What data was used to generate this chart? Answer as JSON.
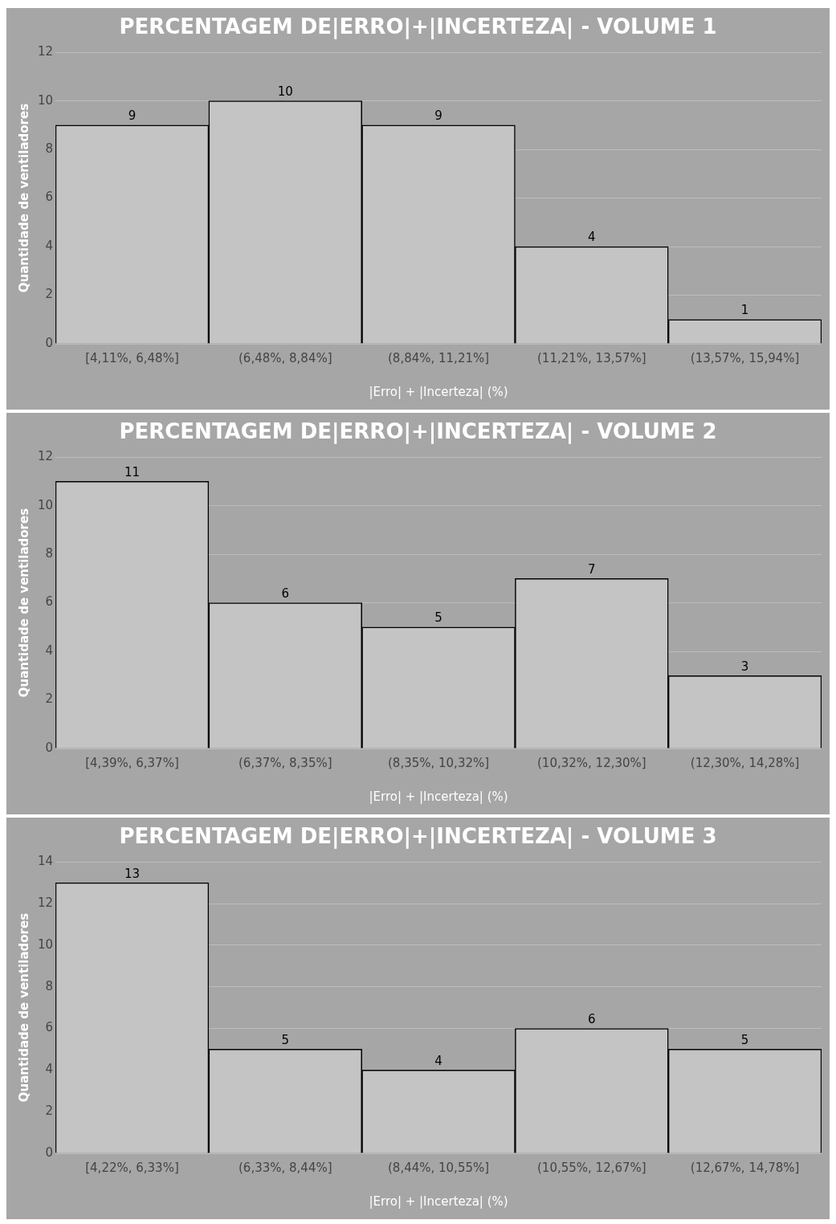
{
  "chart_data": [
    {
      "type": "bar",
      "title": "PERCENTAGEM DE|ERRO|+|INCERTEZA| - VOLUME 1",
      "xlabel": "|Erro| + |Incerteza| (%)",
      "ylabel": "Quantidade de ventiladores",
      "categories": [
        "[4,11%, 6,48%]",
        "(6,48%, 8,84%]",
        "(8,84%, 11,21%]",
        "(11,21%, 13,57%]",
        "(13,57%, 15,94%]"
      ],
      "values": [
        9,
        10,
        9,
        4,
        1
      ],
      "color": "#c4c4c4",
      "ylim": [
        0,
        12
      ],
      "yticks": [
        0,
        2,
        4,
        6,
        8,
        10,
        12
      ],
      "grid": "y",
      "legend": false,
      "data_labels": true
    },
    {
      "type": "bar",
      "title": "PERCENTAGEM DE|ERRO|+|INCERTEZA| - VOLUME 2",
      "xlabel": "|Erro| + |Incerteza| (%)",
      "ylabel": "Quantidade de ventiladores",
      "categories": [
        "[4,39%, 6,37%]",
        "(6,37%, 8,35%]",
        "(8,35%, 10,32%]",
        "(10,32%, 12,30%]",
        "(12,30%, 14,28%]"
      ],
      "values": [
        11,
        6,
        5,
        7,
        3
      ],
      "color": "#c4c4c4",
      "ylim": [
        0,
        12
      ],
      "yticks": [
        0,
        2,
        4,
        6,
        8,
        10,
        12
      ],
      "grid": "y",
      "legend": false,
      "data_labels": true
    },
    {
      "type": "bar",
      "title": "PERCENTAGEM DE|ERRO|+|INCERTEZA| - VOLUME 3",
      "xlabel": "|Erro| + |Incerteza| (%)",
      "ylabel": "Quantidade de ventiladores",
      "categories": [
        "[4,22%, 6,33%]",
        "(6,33%, 8,44%]",
        "(8,44%, 10,55%]",
        "(10,55%, 12,67%]",
        "(12,67%, 14,78%]"
      ],
      "values": [
        13,
        5,
        4,
        6,
        5
      ],
      "color": "#c4c4c4",
      "ylim": [
        0,
        14
      ],
      "yticks": [
        0,
        2,
        4,
        6,
        8,
        10,
        12,
        14
      ],
      "grid": "y",
      "legend": false,
      "data_labels": true
    }
  ]
}
